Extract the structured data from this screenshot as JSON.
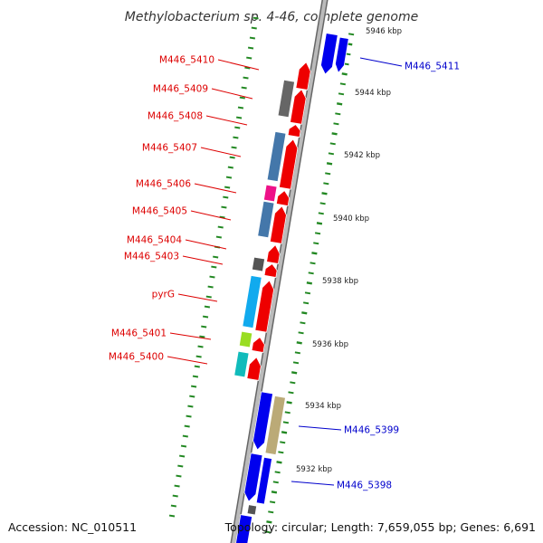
{
  "title": "Methylobacterium sp. 4-46, complete genome",
  "footer": {
    "accession": "Accession: NC_010511",
    "topology": "Topology: circular; Length: 7,659,055 bp; Genes: 6,691"
  },
  "colors": {
    "forward_strand": "#ee0000",
    "reverse_strand": "#0000ee",
    "backbone": "#888888",
    "ruler_ticks": "#228822",
    "left_labels": "#dd0000",
    "right_labels": "#0000cc"
  },
  "ruler_labels": [
    "5946 kbp",
    "5944 kbp",
    "5942 kbp",
    "5940 kbp",
    "5938 kbp",
    "5936 kbp",
    "5934 kbp",
    "5932 kbp"
  ],
  "left_gene_labels": [
    "M446_5410",
    "M446_5409",
    "M446_5408",
    "M446_5407",
    "M446_5406",
    "M446_5405",
    "M446_5404",
    "M446_5403",
    "pyrG",
    "M446_5401",
    "M446_5400"
  ],
  "right_gene_labels": [
    "M446_5411",
    "M446_5399",
    "M446_5398"
  ]
}
